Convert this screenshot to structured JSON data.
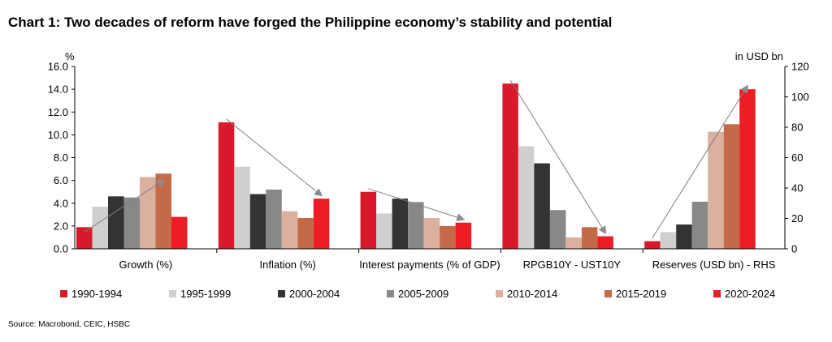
{
  "title": "Chart 1: Two decades of reform have forged the Philippine economy’s stability and potential",
  "source": "Source: Macrobond, CEIC, HSBC",
  "chart_data": {
    "type": "bar",
    "categories": [
      "Growth (%)",
      "Inflation (%)",
      "Interest payments (% of GDP)",
      "RPGB10Y - UST10Y",
      "Reserves (USD bn) - RHS"
    ],
    "y_left_label": "%",
    "y_right_label": "in USD bn",
    "ylim_left": [
      0,
      16
    ],
    "yticks_left": [
      "0.0",
      "2.0",
      "4.0",
      "6.0",
      "8.0",
      "10.0",
      "12.0",
      "14.0",
      "16.0"
    ],
    "ylim_right": [
      0,
      120
    ],
    "yticks_right": [
      "0",
      "20",
      "40",
      "60",
      "80",
      "100",
      "120"
    ],
    "grid": false,
    "legend_position": "bottom",
    "series": [
      {
        "name": "1990-1994",
        "color": "#d7192b",
        "values": [
          1.9,
          11.1,
          5.0,
          14.5,
          5
        ]
      },
      {
        "name": "1995-1999",
        "color": "#cfcfcf",
        "values": [
          3.7,
          7.2,
          3.1,
          9.0,
          11
        ]
      },
      {
        "name": "2000-2004",
        "color": "#333333",
        "values": [
          4.6,
          4.8,
          4.4,
          7.5,
          16
        ]
      },
      {
        "name": "2005-2009",
        "color": "#888888",
        "values": [
          4.5,
          5.2,
          4.1,
          3.4,
          31
        ]
      },
      {
        "name": "2010-2014",
        "color": "#dbb09e",
        "values": [
          6.3,
          3.3,
          2.7,
          1.0,
          77
        ]
      },
      {
        "name": "2015-2019",
        "color": "#c56a48",
        "values": [
          6.6,
          2.7,
          2.0,
          1.9,
          82
        ]
      },
      {
        "name": "2020-2024",
        "color": "#ee1c25",
        "values": [
          2.8,
          4.4,
          2.3,
          1.1,
          105
        ]
      }
    ],
    "trend_arrows": [
      {
        "category": 0,
        "from_series": 0,
        "to_series": 5
      },
      {
        "category": 1,
        "from_series": 0,
        "to_series": 6
      },
      {
        "category": 2,
        "from_series": 0,
        "to_series": 6
      },
      {
        "category": 3,
        "from_series": 0,
        "to_series": 6
      },
      {
        "category": 4,
        "from_series": 0,
        "to_series": 6
      }
    ]
  }
}
